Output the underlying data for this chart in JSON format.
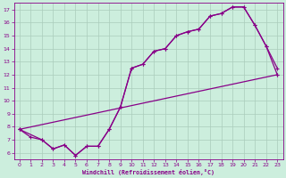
{
  "xlabel": "Windchill (Refroidissement éolien,°C)",
  "bg_color": "#cceedd",
  "line_color": "#880088",
  "grid_color": "#bbddcc",
  "xlim": [
    -0.5,
    23.5
  ],
  "ylim": [
    5.5,
    17.5
  ],
  "xticks": [
    0,
    1,
    2,
    3,
    4,
    5,
    6,
    7,
    8,
    9,
    10,
    11,
    12,
    13,
    14,
    15,
    16,
    17,
    18,
    19,
    20,
    21,
    22,
    23
  ],
  "yticks": [
    6,
    7,
    8,
    9,
    10,
    11,
    12,
    13,
    14,
    15,
    16,
    17
  ],
  "line1_x": [
    0,
    1,
    2,
    3,
    4,
    5,
    6,
    7,
    8,
    9,
    10,
    11,
    12,
    13,
    14,
    15,
    16,
    17,
    18,
    19,
    20,
    21,
    22,
    23
  ],
  "line1_y": [
    7.8,
    7.2,
    7.0,
    6.3,
    6.6,
    5.8,
    6.5,
    6.5,
    7.8,
    9.5,
    12.5,
    12.8,
    13.8,
    14.0,
    15.0,
    15.3,
    15.5,
    16.5,
    16.7,
    17.2,
    17.2,
    15.8,
    14.2,
    12.5
  ],
  "line2_x": [
    0,
    2,
    3,
    4,
    5,
    6,
    7,
    8,
    9,
    10,
    11,
    12,
    13,
    14,
    15,
    16,
    17,
    18,
    19,
    20,
    21,
    22,
    23
  ],
  "line2_y": [
    7.8,
    7.0,
    6.3,
    6.6,
    5.8,
    6.5,
    6.5,
    7.8,
    9.5,
    12.5,
    12.8,
    13.8,
    14.0,
    15.0,
    15.3,
    15.5,
    16.5,
    16.7,
    17.2,
    17.2,
    15.8,
    14.2,
    12.0
  ],
  "line3_x": [
    0,
    23
  ],
  "line3_y": [
    7.8,
    12.0
  ]
}
